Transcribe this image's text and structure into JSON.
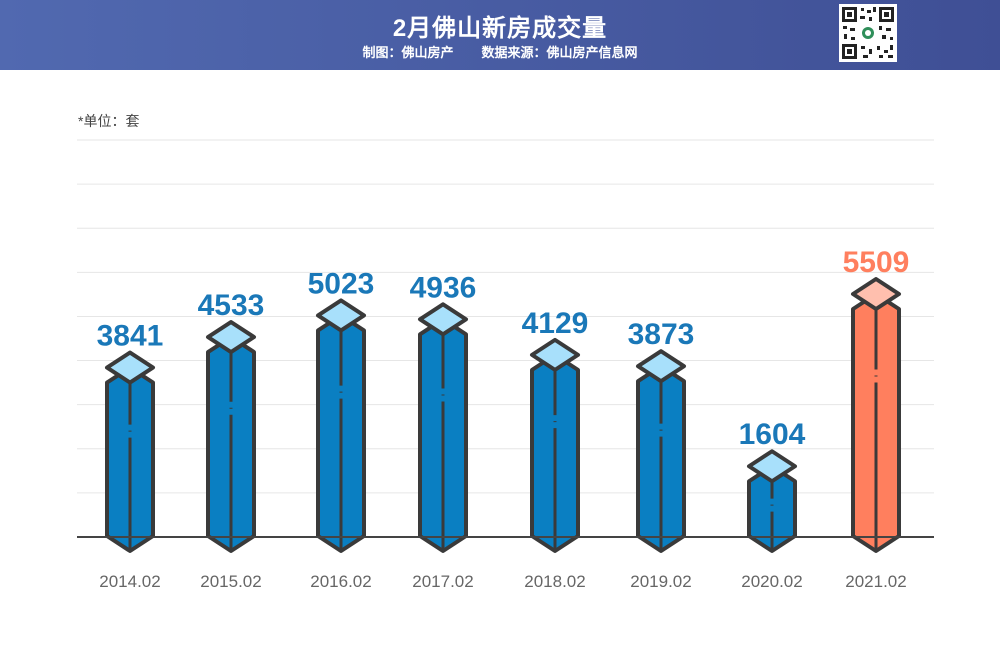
{
  "header": {
    "title": "2月佛山新房成交量",
    "made_by": "制图：佛山房产",
    "source": "数据来源：佛山房产信息网"
  },
  "unit_note": "*单位：套",
  "colors": {
    "header_start": "#5169b0",
    "header_end": "#3f4f95",
    "bar_blue": "#0a7fc2",
    "bar_blue_top": "#a8e0fb",
    "bar_highlight": "#ff7f5e",
    "bar_highlight_top": "#ffbfae",
    "label_blue": "#1a78b8",
    "label_highlight": "#ff7f5e",
    "outline": "#3a3a3a"
  },
  "chart_data": {
    "type": "bar",
    "categories": [
      "2014.02",
      "2015.02",
      "2016.02",
      "2017.02",
      "2018.02",
      "2019.02",
      "2020.02",
      "2021.02"
    ],
    "values": [
      3841,
      4533,
      5023,
      4936,
      4129,
      3873,
      1604,
      5509
    ],
    "highlight_index": 7,
    "ylim": [
      0,
      9000
    ],
    "grid": true,
    "title": "2月佛山新房成交量",
    "xlabel": "",
    "ylabel": ""
  }
}
